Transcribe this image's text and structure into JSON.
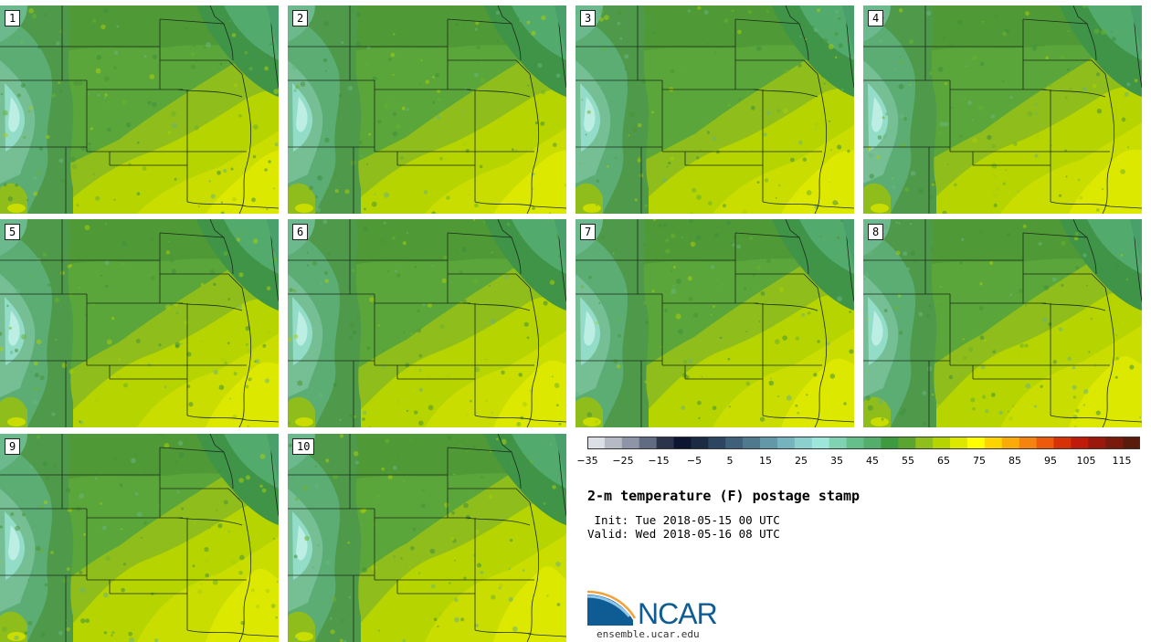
{
  "panels": [
    {
      "label": "1"
    },
    {
      "label": "2"
    },
    {
      "label": "3"
    },
    {
      "label": "4"
    },
    {
      "label": "5"
    },
    {
      "label": "6"
    },
    {
      "label": "7"
    },
    {
      "label": "8"
    },
    {
      "label": "9"
    },
    {
      "label": "10"
    }
  ],
  "colorbar": {
    "ticks": [
      "−35",
      "−25",
      "−15",
      "−5",
      "5",
      "15",
      "25",
      "35",
      "45",
      "55",
      "65",
      "75",
      "85",
      "95",
      "105",
      "115"
    ],
    "colors": [
      "#dcdfe4",
      "#b5bac4",
      "#8e95a6",
      "#616b82",
      "#2b344b",
      "#0d1630",
      "#1b2b44",
      "#2d4560",
      "#3f607a",
      "#4f7a8e",
      "#6298a7",
      "#76b4bd",
      "#8bd0cf",
      "#9ce6da",
      "#80d3b2",
      "#65bf8a",
      "#52ae6a",
      "#3e9a3f",
      "#5aa52f",
      "#8ebf1a",
      "#b6d400",
      "#dde800",
      "#ffff00",
      "#fdd300",
      "#fbab08",
      "#f5840e",
      "#ee5a0c",
      "#d73205",
      "#bf1a0a",
      "#9a180c",
      "#7a1a0c",
      "#5a1a0c"
    ]
  },
  "title": "2-m temperature (F) postage stamp",
  "init": " Init: Tue 2018-05-15 00 UTC",
  "valid": "Valid: Wed 2018-05-16 08 UTC",
  "logo": {
    "text": "NCAR",
    "url": "ensemble.ucar.edu"
  }
}
